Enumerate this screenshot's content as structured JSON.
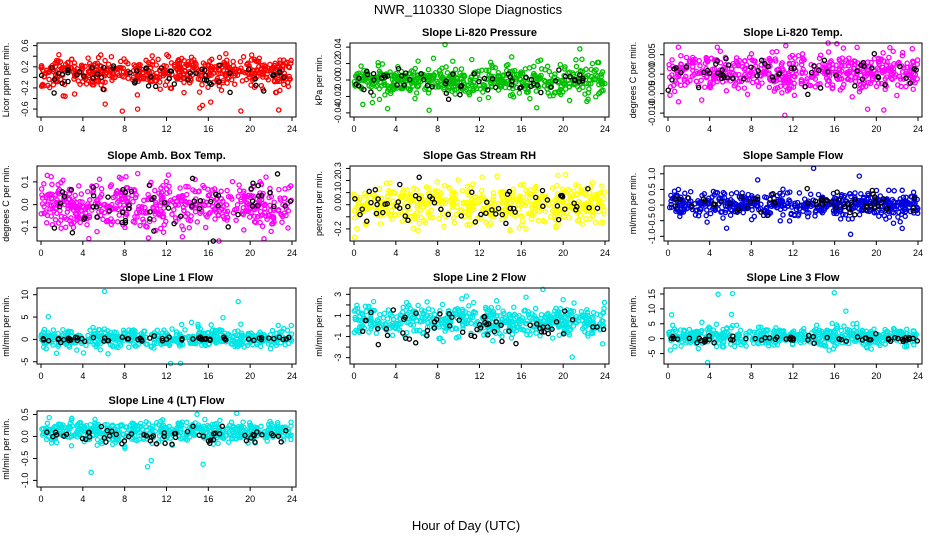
{
  "figure": {
    "title": "NWR_110330  Slope Diagnostics",
    "xlabel": "Hour of Day (UTC)"
  },
  "chart_data": [
    {
      "type": "scatter",
      "title": "Slope Li-820 CO2",
      "ylabel": "Licor ppm per min.",
      "xlim": [
        0,
        24
      ],
      "xticks": [
        0,
        4,
        8,
        12,
        16,
        20,
        24
      ],
      "ylim": [
        -0.75,
        0.65
      ],
      "yticks": [
        -0.6,
        -0.4,
        -0.2,
        0.0,
        0.2,
        0.4,
        0.6
      ],
      "ytick_labels": [
        "-0.6",
        "-0.2",
        "0.2",
        "0.6"
      ],
      "series": [
        {
          "color": "#ff0000",
          "n_points": 520,
          "center": 0.1,
          "spread": 0.13,
          "outlier_rate": 0.03,
          "outlier_range": [
            -0.7,
            0.6
          ],
          "seed": 11
        },
        {
          "color": "#000000",
          "n_points": 60,
          "center": 0.05,
          "spread": 0.13,
          "outlier_rate": 0.05,
          "outlier_range": [
            -0.35,
            0.3
          ],
          "seed": 12
        }
      ]
    },
    {
      "type": "scatter",
      "title": "Slope Li-820 Pressure",
      "ylabel": "kPa per min.",
      "xlim": [
        0,
        24
      ],
      "xticks": [
        0,
        4,
        8,
        12,
        16,
        20,
        24
      ],
      "ylim": [
        -0.045,
        0.045
      ],
      "yticks": [
        -0.04,
        -0.02,
        0.0,
        0.02,
        0.04
      ],
      "ytick_labels": [
        "-0.04",
        "-0.02",
        "0.00",
        "0.02",
        "0.04"
      ],
      "series": [
        {
          "color": "#00c000",
          "n_points": 520,
          "center": 0.0,
          "spread": 0.008,
          "grow": 1.4,
          "outlier_rate": 0.03,
          "outlier_range": [
            -0.04,
            0.045
          ],
          "seed": 21
        },
        {
          "color": "#000000",
          "n_points": 60,
          "center": 0.0,
          "spread": 0.007,
          "grow": 1.2,
          "outlier_rate": 0.03,
          "outlier_range": [
            -0.02,
            0.025
          ],
          "seed": 22
        }
      ]
    },
    {
      "type": "scatter",
      "title": "Slope Li-820 Temp.",
      "ylabel": "degrees C per min.",
      "xlim": [
        0,
        24
      ],
      "xticks": [
        0,
        4,
        8,
        12,
        16,
        20,
        24
      ],
      "ylim": [
        -0.011,
        0.008
      ],
      "yticks": [
        -0.01,
        -0.005,
        0.0,
        0.005
      ],
      "ytick_labels": [
        "-0.010",
        "-0.005",
        "0.000",
        "0.005"
      ],
      "series": [
        {
          "color": "#ff00ff",
          "n_points": 520,
          "center": 0.0005,
          "spread": 0.0025,
          "outlier_rate": 0.03,
          "outlier_range": [
            -0.011,
            0.008
          ],
          "seed": 31
        },
        {
          "color": "#000000",
          "n_points": 60,
          "center": 0.0005,
          "spread": 0.002,
          "outlier_rate": 0.03,
          "outlier_range": [
            -0.005,
            0.004
          ],
          "seed": 32
        }
      ]
    },
    {
      "type": "scatter",
      "title": "Slope Amb. Box Temp.",
      "ylabel": "degrees C per min.",
      "xlim": [
        0,
        24
      ],
      "xticks": [
        0,
        4,
        8,
        12,
        16,
        20,
        24
      ],
      "ylim": [
        -0.16,
        0.17
      ],
      "yticks": [
        -0.1,
        0.0,
        0.1
      ],
      "ytick_labels": [
        "-0.1",
        "0.0",
        "0.1"
      ],
      "series": [
        {
          "color": "#ff00ff",
          "n_points": 520,
          "center": 0.0,
          "spread": 0.055,
          "outlier_rate": 0.03,
          "outlier_range": [
            -0.16,
            0.16
          ],
          "seed": 41
        },
        {
          "color": "#000000",
          "n_points": 60,
          "center": 0.01,
          "spread": 0.06,
          "outlier_rate": 0.04,
          "outlier_range": [
            -0.13,
            0.14
          ],
          "seed": 42
        }
      ]
    },
    {
      "type": "scatter",
      "title": "Slope Gas Stream RH",
      "ylabel": "percent per min.",
      "xlim": [
        0,
        24
      ],
      "xticks": [
        0,
        4,
        8,
        12,
        16,
        20,
        24
      ],
      "ylim": [
        -0.3,
        0.32
      ],
      "yticks": [
        -0.2,
        -0.1,
        0.0,
        0.1,
        0.2,
        0.3
      ],
      "ytick_labels": [
        "-0.2",
        "0.0",
        "0.1",
        "0.2",
        "0.3"
      ],
      "series": [
        {
          "color": "#ffff00",
          "n_points": 520,
          "center": 0.0,
          "spread": 0.085,
          "outlier_rate": 0.02,
          "outlier_range": [
            -0.28,
            0.3
          ],
          "seed": 51
        },
        {
          "color": "#000000",
          "n_points": 60,
          "center": 0.0,
          "spread": 0.075,
          "outlier_rate": 0.03,
          "outlier_range": [
            -0.18,
            0.2
          ],
          "seed": 52
        }
      ]
    },
    {
      "type": "scatter",
      "title": "Slope Sample Flow",
      "ylabel": "ml/min per min.",
      "xlim": [
        0,
        24
      ],
      "xticks": [
        0,
        4,
        8,
        12,
        16,
        20,
        24
      ],
      "ylim": [
        -1.15,
        1.25
      ],
      "yticks": [
        -1.0,
        -0.5,
        0.0,
        0.5,
        1.0
      ],
      "ytick_labels": [
        "-1.0",
        "-0.5",
        "0.0",
        "0.5",
        "1.0"
      ],
      "series": [
        {
          "color": "#0000dd",
          "n_points": 520,
          "center": 0.0,
          "spread": 0.22,
          "outlier_rate": 0.03,
          "outlier_range": [
            -1.1,
            1.2
          ],
          "seed": 61
        },
        {
          "color": "#000000",
          "n_points": 60,
          "center": 0.05,
          "spread": 0.22,
          "outlier_rate": 0.04,
          "outlier_range": [
            -0.6,
            0.75
          ],
          "seed": 62
        }
      ]
    },
    {
      "type": "scatter",
      "title": "Slope Line 1 Flow",
      "ylabel": "ml/min per min.",
      "xlim": [
        0,
        24
      ],
      "xticks": [
        0,
        4,
        8,
        12,
        16,
        20,
        24
      ],
      "ylim": [
        -5.5,
        11.5
      ],
      "yticks": [
        -5,
        0,
        5,
        10
      ],
      "ytick_labels": [
        "-5",
        "0",
        "5",
        "10"
      ],
      "series": [
        {
          "color": "#00e5e5",
          "n_points": 500,
          "center": 0.2,
          "spread": 1.1,
          "outlier_rate": 0.03,
          "outlier_range": [
            -5.5,
            11
          ],
          "seed": 71
        },
        {
          "color": "#000000",
          "n_points": 60,
          "center": 0.0,
          "spread": 0.35,
          "outlier_rate": 0.0,
          "outlier_range": [
            -1,
            1
          ],
          "seed": 72
        }
      ]
    },
    {
      "type": "scatter",
      "title": "Slope Line 2 Flow",
      "ylabel": "ml/min per min.",
      "xlim": [
        0,
        24
      ],
      "xticks": [
        0,
        4,
        8,
        12,
        16,
        20,
        24
      ],
      "ylim": [
        -3.6,
        3.6
      ],
      "yticks": [
        -3,
        -2,
        -1,
        0,
        1,
        2,
        3
      ],
      "ytick_labels": [
        "-3",
        "-1",
        "1",
        "3"
      ],
      "series": [
        {
          "color": "#00e5e5",
          "n_points": 520,
          "center": 0.5,
          "spread": 0.75,
          "outlier_rate": 0.03,
          "outlier_range": [
            -3.5,
            3.4
          ],
          "seed": 81
        },
        {
          "color": "#000000",
          "n_points": 60,
          "center": 0.1,
          "spread": 0.9,
          "outlier_rate": 0.03,
          "outlier_range": [
            -2.6,
            2.3
          ],
          "seed": 82
        }
      ]
    },
    {
      "type": "scatter",
      "title": "Slope Line 3 Flow",
      "ylabel": "ml/min per min.",
      "xlim": [
        0,
        24
      ],
      "xticks": [
        0,
        4,
        8,
        12,
        16,
        20,
        24
      ],
      "ylim": [
        -8.5,
        17
      ],
      "yticks": [
        -5,
        0,
        5,
        10,
        15
      ],
      "ytick_labels": [
        "-5",
        "0",
        "5",
        "10",
        "15"
      ],
      "series": [
        {
          "color": "#00e5e5",
          "n_points": 500,
          "center": 0.8,
          "spread": 1.6,
          "outlier_rate": 0.03,
          "outlier_range": [
            -8,
            16
          ],
          "seed": 91
        },
        {
          "color": "#000000",
          "n_points": 60,
          "center": 0.0,
          "spread": 0.6,
          "outlier_rate": 0.0,
          "outlier_range": [
            -2,
            2
          ],
          "seed": 92
        }
      ]
    },
    {
      "type": "scatter",
      "title": "Slope Line 4 (LT) Flow",
      "ylabel": "ml/min per min.",
      "xlim": [
        0,
        24
      ],
      "xticks": [
        0,
        4,
        8,
        12,
        16,
        20,
        24
      ],
      "ylim": [
        -1.15,
        0.58
      ],
      "yticks": [
        -1.0,
        -0.5,
        0.0,
        0.5
      ],
      "ytick_labels": [
        "-1.0",
        "-0.5",
        "0.0",
        "0.5"
      ],
      "series": [
        {
          "color": "#00e5e5",
          "n_points": 520,
          "center": 0.12,
          "spread": 0.12,
          "outlier_rate": 0.02,
          "outlier_range": [
            -1.1,
            0.55
          ],
          "seed": 101
        },
        {
          "color": "#000000",
          "n_points": 60,
          "center": 0.0,
          "spread": 0.08,
          "outlier_rate": 0.02,
          "outlier_range": [
            -0.2,
            0.2
          ],
          "seed": 102
        }
      ]
    }
  ]
}
